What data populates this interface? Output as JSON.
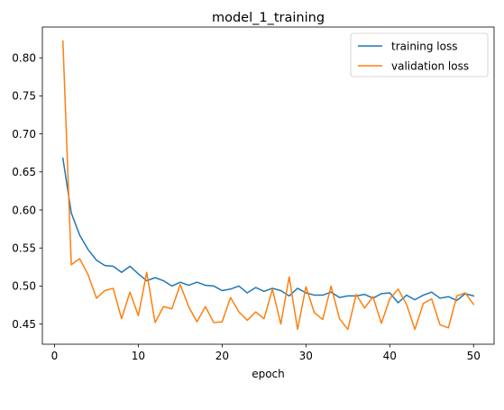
{
  "chart_data": {
    "type": "line",
    "title": "model_1_training",
    "xlabel": "epoch",
    "ylabel": "",
    "xlim": [
      -1.45,
      52.45
    ],
    "ylim": [
      0.4235,
      0.8405
    ],
    "xticks": [
      0,
      10,
      20,
      30,
      40,
      50
    ],
    "yticks": [
      0.45,
      0.5,
      0.55,
      0.6,
      0.65,
      0.7,
      0.75,
      0.8
    ],
    "grid": false,
    "legend_position": "top-right",
    "x": [
      1,
      2,
      3,
      4,
      5,
      6,
      7,
      8,
      9,
      10,
      11,
      12,
      13,
      14,
      15,
      16,
      17,
      18,
      19,
      20,
      21,
      22,
      23,
      24,
      25,
      26,
      27,
      28,
      29,
      30,
      31,
      32,
      33,
      34,
      35,
      36,
      37,
      38,
      39,
      40,
      41,
      42,
      43,
      44,
      45,
      46,
      47,
      48,
      49,
      50
    ],
    "series": [
      {
        "name": "training loss",
        "color": "#1f77b4",
        "values": [
          0.668,
          0.596,
          0.567,
          0.548,
          0.534,
          0.527,
          0.526,
          0.518,
          0.526,
          0.516,
          0.507,
          0.511,
          0.507,
          0.5,
          0.505,
          0.501,
          0.505,
          0.501,
          0.5,
          0.494,
          0.496,
          0.5,
          0.491,
          0.498,
          0.493,
          0.497,
          0.494,
          0.487,
          0.497,
          0.491,
          0.488,
          0.488,
          0.492,
          0.485,
          0.487,
          0.487,
          0.489,
          0.484,
          0.49,
          0.491,
          0.478,
          0.488,
          0.482,
          0.488,
          0.492,
          0.484,
          0.486,
          0.481,
          0.49,
          0.487
        ]
      },
      {
        "name": "validation loss",
        "color": "#ff7f0e",
        "values": [
          0.822,
          0.528,
          0.536,
          0.515,
          0.484,
          0.494,
          0.497,
          0.457,
          0.492,
          0.461,
          0.518,
          0.452,
          0.473,
          0.47,
          0.502,
          0.473,
          0.453,
          0.473,
          0.452,
          0.453,
          0.485,
          0.466,
          0.455,
          0.466,
          0.457,
          0.496,
          0.45,
          0.512,
          0.443,
          0.499,
          0.465,
          0.456,
          0.5,
          0.457,
          0.443,
          0.489,
          0.471,
          0.486,
          0.451,
          0.483,
          0.496,
          0.476,
          0.443,
          0.477,
          0.483,
          0.449,
          0.445,
          0.487,
          0.491,
          0.476
        ]
      }
    ]
  }
}
